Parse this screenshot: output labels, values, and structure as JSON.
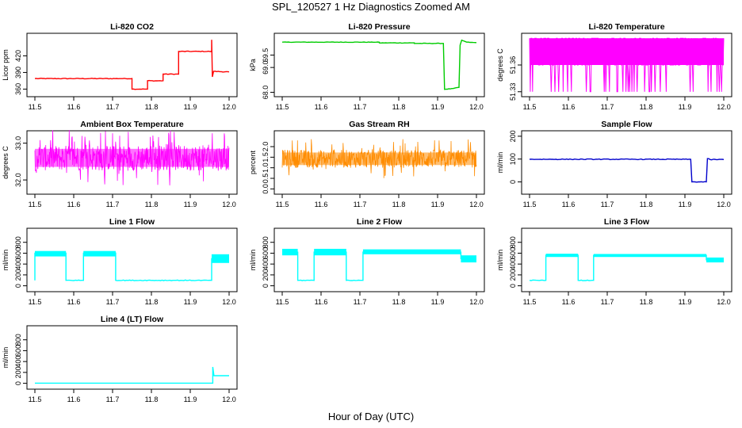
{
  "page": {
    "title": "SPL_120527  1 Hz Diagnostics Zoomed AM",
    "xlabel": "Hour of Day (UTC)"
  },
  "chart_data": [
    {
      "type": "line",
      "title": "Li-820 CO2",
      "ylabel": "Licor ppm",
      "xlim": [
        11.5,
        12.0
      ],
      "ylim": [
        352,
        455
      ],
      "xticks": [
        "11.5",
        "11.6",
        "11.7",
        "11.8",
        "11.9",
        "12.0"
      ],
      "yticks": [
        {
          "v": 360,
          "t": "360"
        },
        {
          "v": 390,
          "t": "390"
        },
        {
          "v": 420,
          "t": "420"
        }
      ],
      "color": "#ff0000",
      "noise": 0.6,
      "points": [
        [
          11.5,
          379
        ],
        [
          11.75,
          379
        ],
        [
          11.75,
          360
        ],
        [
          11.79,
          360
        ],
        [
          11.79,
          375
        ],
        [
          11.83,
          375
        ],
        [
          11.83,
          387
        ],
        [
          11.87,
          387
        ],
        [
          11.87,
          428
        ],
        [
          11.955,
          428
        ],
        [
          11.955,
          449
        ],
        [
          11.957,
          382
        ],
        [
          11.96,
          392
        ],
        [
          12.0,
          391
        ]
      ]
    },
    {
      "type": "line",
      "title": "Li-820 Pressure",
      "ylabel": "kPa",
      "xlim": [
        11.5,
        12.0
      ],
      "ylim": [
        67.95,
        70.25
      ],
      "xticks": [
        "11.5",
        "11.6",
        "11.7",
        "11.8",
        "11.9",
        "12.0"
      ],
      "yticks": [
        {
          "v": 68.0,
          "t": "68.0"
        },
        {
          "v": 69.0,
          "t": "69.0"
        },
        {
          "v": 69.5,
          "t": "69.5"
        }
      ],
      "color": "#00cc00",
      "noise": 0.008,
      "points": [
        [
          11.5,
          70.02
        ],
        [
          11.75,
          70.02
        ],
        [
          11.75,
          69.99
        ],
        [
          11.84,
          69.99
        ],
        [
          11.84,
          69.97
        ],
        [
          11.915,
          69.97
        ],
        [
          11.918,
          68.12
        ],
        [
          11.94,
          68.15
        ],
        [
          11.955,
          68.2
        ],
        [
          11.958,
          69.9
        ],
        [
          11.962,
          70.1
        ],
        [
          11.975,
          70.02
        ],
        [
          12.0,
          70.0
        ]
      ]
    },
    {
      "type": "line",
      "title": "Li-820 Temperature",
      "ylabel": "degrees C",
      "xlim": [
        11.5,
        12.0
      ],
      "ylim": [
        51.328,
        51.392
      ],
      "xticks": [
        "11.5",
        "11.6",
        "11.7",
        "11.8",
        "11.9",
        "12.0"
      ],
      "yticks": [
        {
          "v": 51.33,
          "t": "51.33"
        },
        {
          "v": 51.36,
          "t": "51.36"
        }
      ],
      "color": "#ff00ff",
      "levels": [
        51.33,
        51.36,
        51.39
      ],
      "points": []
    },
    {
      "type": "line",
      "title": "Ambient Box Temperature",
      "ylabel": "degrees C",
      "xlim": [
        11.5,
        12.0
      ],
      "ylim": [
        31.7,
        33.25
      ],
      "xticks": [
        "11.5",
        "11.6",
        "11.7",
        "11.8",
        "11.9",
        "12.0"
      ],
      "yticks": [
        {
          "v": 32.0,
          "t": "32.0"
        },
        {
          "v": 33.0,
          "t": "33.0"
        }
      ],
      "color": "#ff00ff",
      "band": [
        32.25,
        32.95
      ],
      "points": []
    },
    {
      "type": "line",
      "title": "Gas Stream RH",
      "ylabel": "percent",
      "xlim": [
        11.5,
        12.0
      ],
      "ylim": [
        -0.1,
        2.6
      ],
      "xticks": [
        "11.5",
        "11.6",
        "11.7",
        "11.8",
        "11.9",
        "12.0"
      ],
      "yticks": [
        {
          "v": 0.0,
          "t": "0.0"
        },
        {
          "v": 0.5,
          "t": "0.5"
        },
        {
          "v": 1.0,
          "t": "1.0"
        },
        {
          "v": 1.5,
          "t": "1.5"
        },
        {
          "v": 2.0,
          "t": "2.0"
        }
      ],
      "color": "#ff8c00",
      "band": [
        1.0,
        1.85
      ],
      "points": []
    },
    {
      "type": "line",
      "title": "Sample Flow",
      "ylabel": "ml/min",
      "xlim": [
        11.5,
        12.0
      ],
      "ylim": [
        -40,
        210
      ],
      "xticks": [
        "11.5",
        "11.6",
        "11.7",
        "11.8",
        "11.9",
        "12.0"
      ],
      "yticks": [
        {
          "v": 0,
          "t": "0"
        },
        {
          "v": 100,
          "t": "100"
        },
        {
          "v": 200,
          "t": "200"
        }
      ],
      "color": "#0000cc",
      "noise": 1.5,
      "points": [
        [
          11.5,
          99
        ],
        [
          11.915,
          99
        ],
        [
          11.918,
          0
        ],
        [
          11.955,
          0
        ],
        [
          11.958,
          102
        ],
        [
          11.965,
          98
        ],
        [
          12.0,
          98
        ]
      ]
    },
    {
      "type": "line",
      "title": "Line 1 Flow",
      "ylabel": "ml/min",
      "xlim": [
        11.5,
        12.0
      ],
      "ylim": [
        -50,
        1000
      ],
      "xticks": [
        "11.5",
        "11.6",
        "11.7",
        "11.8",
        "11.9",
        "12.0"
      ],
      "yticks": [
        {
          "v": 0,
          "t": "0"
        },
        {
          "v": 200,
          "t": "200"
        },
        {
          "v": 400,
          "t": "400"
        },
        {
          "v": 600,
          "t": "600"
        },
        {
          "v": 800,
          "t": "800"
        }
      ],
      "color": "#00ffff",
      "noise": 6,
      "points": [
        [
          11.5,
          100
        ],
        [
          11.5,
          600
        ],
        [
          11.58,
          600
        ],
        [
          11.58,
          100
        ],
        [
          11.625,
          100
        ],
        [
          11.625,
          600
        ],
        [
          11.708,
          600
        ],
        [
          11.708,
          100
        ],
        [
          11.955,
          100
        ],
        [
          11.955,
          500
        ],
        [
          12.0,
          500
        ]
      ],
      "bands": [
        [
          11.5,
          11.58,
          540,
          640
        ],
        [
          11.625,
          11.708,
          540,
          640
        ],
        [
          11.955,
          12.0,
          420,
          580
        ]
      ]
    },
    {
      "type": "line",
      "title": "Line 2 Flow",
      "ylabel": "ml/min",
      "xlim": [
        11.5,
        12.0
      ],
      "ylim": [
        -50,
        1000
      ],
      "xticks": [
        "11.5",
        "11.6",
        "11.7",
        "11.8",
        "11.9",
        "12.0"
      ],
      "yticks": [
        {
          "v": 0,
          "t": "0"
        },
        {
          "v": 200,
          "t": "200"
        },
        {
          "v": 400,
          "t": "400"
        },
        {
          "v": 600,
          "t": "600"
        },
        {
          "v": 800,
          "t": "800"
        }
      ],
      "color": "#00ffff",
      "noise": 6,
      "points": [
        [
          11.5,
          620
        ],
        [
          11.54,
          620
        ],
        [
          11.54,
          100
        ],
        [
          11.582,
          100
        ],
        [
          11.582,
          620
        ],
        [
          11.665,
          620
        ],
        [
          11.665,
          100
        ],
        [
          11.708,
          100
        ],
        [
          11.708,
          620
        ],
        [
          11.96,
          620
        ],
        [
          11.96,
          500
        ],
        [
          12.0,
          500
        ]
      ],
      "bands": [
        [
          11.5,
          11.54,
          560,
          680
        ],
        [
          11.582,
          11.665,
          560,
          680
        ],
        [
          11.708,
          11.96,
          580,
          670
        ],
        [
          11.96,
          12.0,
          430,
          560
        ]
      ]
    },
    {
      "type": "line",
      "title": "Line 3 Flow",
      "ylabel": "ml/min",
      "xlim": [
        11.5,
        12.0
      ],
      "ylim": [
        -50,
        1000
      ],
      "xticks": [
        "11.5",
        "11.6",
        "11.7",
        "11.8",
        "11.9",
        "12.0"
      ],
      "yticks": [
        {
          "v": 0,
          "t": "0"
        },
        {
          "v": 200,
          "t": "200"
        },
        {
          "v": 400,
          "t": "400"
        },
        {
          "v": 600,
          "t": "600"
        },
        {
          "v": 800,
          "t": "800"
        }
      ],
      "color": "#00ffff",
      "noise": 6,
      "points": [
        [
          11.5,
          100
        ],
        [
          11.542,
          100
        ],
        [
          11.542,
          560
        ],
        [
          11.625,
          560
        ],
        [
          11.625,
          100
        ],
        [
          11.665,
          100
        ],
        [
          11.665,
          560
        ],
        [
          11.955,
          560
        ],
        [
          11.955,
          480
        ],
        [
          12.0,
          480
        ]
      ],
      "bands": [
        [
          11.542,
          11.625,
          530,
          590
        ],
        [
          11.665,
          11.955,
          530,
          585
        ],
        [
          11.955,
          12.0,
          430,
          520
        ]
      ]
    },
    {
      "type": "line",
      "title": "Line 4 (LT) Flow",
      "ylabel": "ml/min",
      "xlim": [
        11.5,
        12.0
      ],
      "ylim": [
        -50,
        1000
      ],
      "xticks": [
        "11.5",
        "11.6",
        "11.7",
        "11.8",
        "11.9",
        "12.0"
      ],
      "yticks": [
        {
          "v": 0,
          "t": "0"
        },
        {
          "v": 200,
          "t": "200"
        },
        {
          "v": 400,
          "t": "400"
        },
        {
          "v": 600,
          "t": "600"
        },
        {
          "v": 800,
          "t": "800"
        }
      ],
      "color": "#00ffff",
      "noise": 0,
      "points": [
        [
          11.5,
          2
        ],
        [
          11.958,
          2
        ],
        [
          11.958,
          300
        ],
        [
          11.961,
          140
        ],
        [
          12.0,
          140
        ]
      ]
    }
  ]
}
